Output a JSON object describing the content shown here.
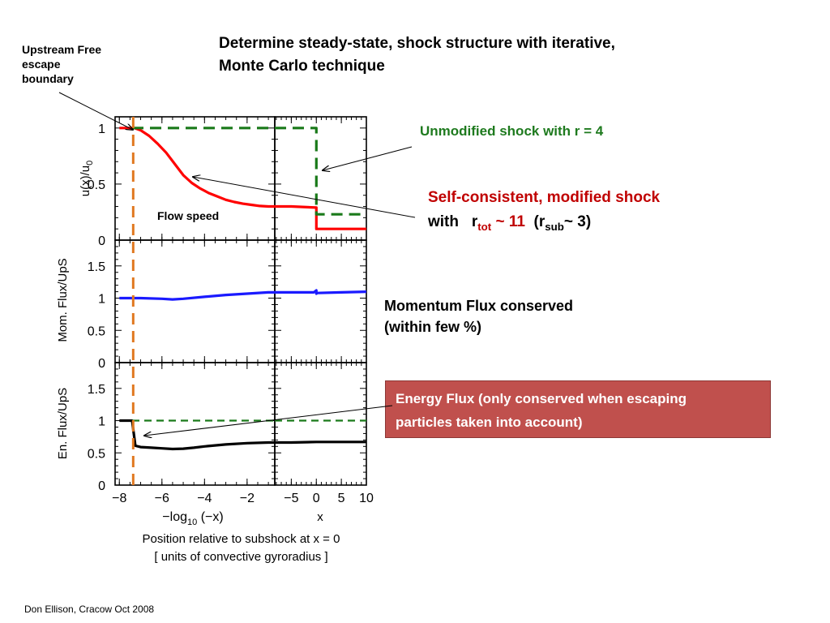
{
  "slide": {
    "title_line1": "Determine steady-state, shock structure with iterative,",
    "title_line2": "Monte Carlo  technique",
    "upstream_line1": "Upstream Free",
    "upstream_line2": "escape",
    "upstream_line3": "boundary",
    "unmodified": "Unmodified shock with r = 4",
    "self_line1": "Self-consistent, modified shock",
    "self_with": "with",
    "self_r": "r",
    "self_tot": "tot",
    "self_tot_val": " ~ 11",
    "self_rsub_open": "(r",
    "self_sub": "sub",
    "self_rsub_close": "~ 3)",
    "momentum_line1": "Momentum Flux conserved",
    "momentum_line2": "(within few %)",
    "energy_line1": "Energy Flux  (only conserved when escaping",
    "energy_line2": "particles taken into account)",
    "position_line1": "Position relative to subshock at x = 0",
    "position_line2": "[ units of convective gyroradius ]",
    "footer": "Don Ellison, Cracow Oct 2008"
  },
  "colors": {
    "unmodified_green": "#1e7a1e",
    "selfconsistent_red": "#c00000",
    "flow_red": "#ff0000",
    "momentum_blue": "#1a1aff",
    "energy_box": "#c0504d",
    "escape_orange": "#e07820",
    "dashed_green": "#1a7a1a"
  },
  "chart_data": {
    "type": "line",
    "panel_labels": {
      "top_ylabel": "u(x)/u",
      "top_ylabel_sub": "0",
      "mid_ylabel": "Mom.  Flux/UpS",
      "bot_ylabel": "En.  Flux/UpS",
      "flow_speed": "Flow speed",
      "left_xlabel_pre": "−log",
      "left_xlabel_sub": "10",
      "left_xlabel_post": " (−x)",
      "right_xlabel": "x"
    },
    "left_x_ticks": [
      "−8",
      "−6",
      "−4",
      "−2"
    ],
    "right_x_ticks": [
      "−5",
      "0",
      "5",
      "10"
    ],
    "left_xlim": [
      -8.2,
      -0.7
    ],
    "right_xlim": [
      -8.3,
      10
    ],
    "top_ylim": [
      0,
      1.1
    ],
    "top_y_ticks": [
      "1",
      "0.5",
      "0"
    ],
    "mid_ylim": [
      0,
      1.9
    ],
    "mid_y_ticks": [
      "1.5",
      "1",
      "0.5",
      "0"
    ],
    "bot_ylim": [
      0,
      1.9
    ],
    "bot_y_ticks": [
      "1.5",
      "1",
      "0.5",
      "0"
    ],
    "escape_boundary_x": -7.35,
    "series": [
      {
        "panel": "top",
        "left": {
          "x": [
            -8,
            -7.6,
            -7.3,
            -7.0,
            -6.6,
            -6.2,
            -5.8,
            -5.4,
            -5.0,
            -4.6,
            -4.2,
            -3.8,
            -3.4,
            -3.0,
            -2.6,
            -2.2,
            -1.8,
            -1.4,
            -1.0,
            -0.7
          ],
          "y": [
            1.0,
            1.0,
            1.0,
            0.98,
            0.93,
            0.86,
            0.78,
            0.68,
            0.58,
            0.51,
            0.46,
            0.42,
            0.39,
            0.36,
            0.34,
            0.325,
            0.315,
            0.305,
            0.3,
            0.3
          ]
        },
        "right": {
          "x": [
            -8.3,
            -5,
            0,
            0,
            10
          ],
          "y": [
            0.3,
            0.3,
            0.29,
            0.1,
            0.1
          ]
        }
      },
      {
        "panel": "top_dashed",
        "left": {
          "x": [
            -7.4,
            -0.7
          ],
          "y": [
            1.0,
            1.0
          ]
        },
        "right": {
          "x": [
            -8.3,
            0,
            0,
            10
          ],
          "y": [
            1.0,
            1.0,
            0.23,
            0.23
          ]
        }
      },
      {
        "panel": "mid",
        "left": {
          "x": [
            -8,
            -7,
            -6,
            -5.5,
            -5,
            -4,
            -3,
            -2,
            -1,
            -0.7
          ],
          "y": [
            1.0,
            1.0,
            0.99,
            0.98,
            0.99,
            1.02,
            1.05,
            1.07,
            1.09,
            1.09
          ]
        },
        "right": {
          "x": [
            -8.3,
            -5,
            -0.5,
            0,
            0,
            0.2,
            5,
            10
          ],
          "y": [
            1.09,
            1.09,
            1.09,
            1.12,
            1.07,
            1.08,
            1.09,
            1.1
          ]
        }
      },
      {
        "panel": "bot",
        "left": {
          "x": [
            -8,
            -7.4,
            -7.25,
            -7.0,
            -6.5,
            -6,
            -5.5,
            -5,
            -4.5,
            -4,
            -3,
            -2,
            -1,
            -0.7
          ],
          "y": [
            1.0,
            1.0,
            0.61,
            0.59,
            0.58,
            0.57,
            0.56,
            0.565,
            0.58,
            0.6,
            0.63,
            0.65,
            0.66,
            0.66
          ]
        },
        "right": {
          "x": [
            -8.3,
            -5,
            0,
            5,
            10
          ],
          "y": [
            0.66,
            0.66,
            0.67,
            0.67,
            0.67
          ]
        }
      },
      {
        "panel": "bot_dashed",
        "left": {
          "x": [
            -7.4,
            -0.7
          ],
          "y": [
            1.0,
            1.0
          ]
        },
        "right": {
          "x": [
            -8.3,
            10
          ],
          "y": [
            1.0,
            1.0
          ]
        }
      }
    ]
  }
}
